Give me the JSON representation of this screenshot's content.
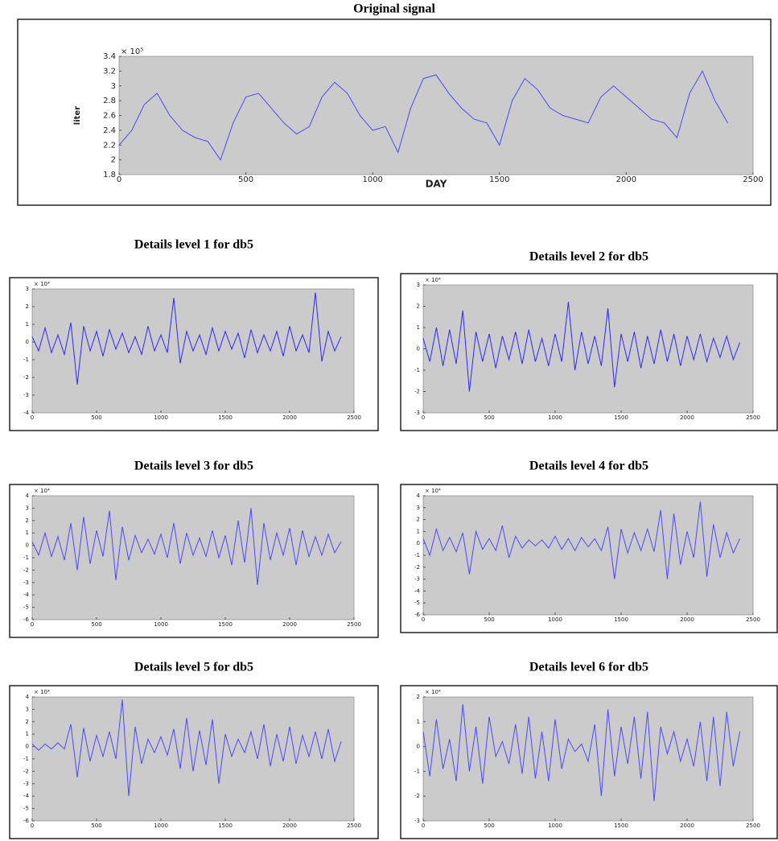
{
  "chart_data": [
    {
      "type": "line",
      "title": "Original signal",
      "xlabel": "DAY",
      "ylabel": "liter",
      "annotation": "× 10⁵",
      "color": "#4a4aff",
      "x": [
        0,
        50,
        100,
        150,
        200,
        250,
        300,
        350,
        400,
        450,
        500,
        550,
        600,
        650,
        700,
        750,
        800,
        850,
        900,
        950,
        1000,
        1050,
        1100,
        1150,
        1200,
        1250,
        1300,
        1350,
        1400,
        1450,
        1500,
        1550,
        1600,
        1650,
        1700,
        1750,
        1800,
        1850,
        1900,
        1950,
        2000,
        2050,
        2100,
        2150,
        2200,
        2250,
        2300,
        2350,
        2400
      ],
      "values": [
        2.2,
        2.4,
        2.75,
        2.9,
        2.6,
        2.4,
        2.3,
        2.25,
        2.0,
        2.5,
        2.85,
        2.9,
        2.7,
        2.5,
        2.35,
        2.45,
        2.85,
        3.05,
        2.9,
        2.6,
        2.4,
        2.45,
        2.1,
        2.7,
        3.1,
        3.15,
        2.9,
        2.7,
        2.55,
        2.5,
        2.2,
        2.8,
        3.1,
        2.95,
        2.7,
        2.6,
        2.55,
        2.5,
        2.85,
        3.0,
        2.85,
        2.7,
        2.55,
        2.5,
        2.3,
        2.9,
        3.2,
        2.8,
        2.5
      ],
      "xlim": [
        0,
        2500
      ],
      "xticks": [
        0,
        500,
        1000,
        1500,
        2000,
        2500
      ],
      "ylim": [
        1.8,
        3.4
      ],
      "yticks": [
        1.8,
        2,
        2.2,
        2.4,
        2.6,
        2.8,
        3,
        3.2,
        3.4
      ]
    },
    {
      "type": "line",
      "title": "Details level 1 for db5",
      "annotation": "× 10⁴",
      "color": "#2a2aff",
      "x": [
        0,
        50,
        100,
        150,
        200,
        250,
        300,
        350,
        400,
        450,
        500,
        550,
        600,
        650,
        700,
        750,
        800,
        850,
        900,
        950,
        1000,
        1050,
        1100,
        1150,
        1200,
        1250,
        1300,
        1350,
        1400,
        1450,
        1500,
        1550,
        1600,
        1650,
        1700,
        1750,
        1800,
        1850,
        1900,
        1950,
        2000,
        2050,
        2100,
        2150,
        2200,
        2250,
        2300,
        2350,
        2400
      ],
      "values": [
        0.3,
        -0.5,
        0.8,
        -0.6,
        0.4,
        -0.7,
        1.1,
        -2.4,
        0.9,
        -0.5,
        0.6,
        -0.8,
        0.7,
        -0.4,
        0.5,
        -0.6,
        0.3,
        -0.7,
        0.9,
        -0.5,
        0.4,
        -0.6,
        2.5,
        -1.2,
        0.6,
        -0.5,
        0.4,
        -0.7,
        0.8,
        -0.5,
        0.6,
        -0.4,
        0.5,
        -0.9,
        0.7,
        -0.6,
        0.4,
        -0.5,
        0.6,
        -0.8,
        0.9,
        -0.5,
        0.4,
        -0.6,
        2.8,
        -1.1,
        0.6,
        -0.5,
        0.3
      ],
      "xlim": [
        0,
        2500
      ],
      "xticks": [
        0,
        500,
        1000,
        1500,
        2000,
        2500
      ],
      "ylim": [
        -4,
        3
      ],
      "yticks": [
        -4,
        -3,
        -2,
        -1,
        0,
        1,
        2,
        3
      ]
    },
    {
      "type": "line",
      "title": "Details level 2 for db5",
      "annotation": "× 10⁴",
      "color": "#2a2aff",
      "x": [
        0,
        50,
        100,
        150,
        200,
        250,
        300,
        350,
        400,
        450,
        500,
        550,
        600,
        650,
        700,
        750,
        800,
        850,
        900,
        950,
        1000,
        1050,
        1100,
        1150,
        1200,
        1250,
        1300,
        1350,
        1400,
        1450,
        1500,
        1550,
        1600,
        1650,
        1700,
        1750,
        1800,
        1850,
        1900,
        1950,
        2000,
        2050,
        2100,
        2150,
        2200,
        2250,
        2300,
        2350,
        2400
      ],
      "values": [
        0.5,
        -0.6,
        1.0,
        -0.8,
        0.9,
        -0.7,
        1.8,
        -2.0,
        0.8,
        -0.6,
        0.7,
        -0.9,
        0.6,
        -0.5,
        0.8,
        -0.7,
        0.9,
        -0.6,
        0.5,
        -0.8,
        0.7,
        -0.6,
        2.2,
        -1.0,
        0.8,
        -0.7,
        0.6,
        -0.8,
        1.9,
        -1.8,
        0.7,
        -0.6,
        0.8,
        -0.9,
        0.6,
        -0.7,
        0.9,
        -0.6,
        0.7,
        -0.8,
        0.6,
        -0.5,
        0.7,
        -0.6,
        0.5,
        -0.4,
        0.6,
        -0.5,
        0.3
      ],
      "xlim": [
        0,
        2500
      ],
      "xticks": [
        0,
        500,
        1000,
        1500,
        2000,
        2500
      ],
      "ylim": [
        -3,
        3
      ],
      "yticks": [
        -3,
        -2,
        -1,
        0,
        1,
        2,
        3
      ]
    },
    {
      "type": "line",
      "title": "Details level 3 for db5",
      "annotation": "× 10⁴",
      "color": "#4a4aff",
      "x": [
        0,
        50,
        100,
        150,
        200,
        250,
        300,
        350,
        400,
        450,
        500,
        550,
        600,
        650,
        700,
        750,
        800,
        850,
        900,
        950,
        1000,
        1050,
        1100,
        1150,
        1200,
        1250,
        1300,
        1350,
        1400,
        1450,
        1500,
        1550,
        1600,
        1650,
        1700,
        1750,
        1800,
        1850,
        1900,
        1950,
        2000,
        2050,
        2100,
        2150,
        2200,
        2250,
        2300,
        2350,
        2400
      ],
      "values": [
        0.3,
        -0.8,
        1.0,
        -0.9,
        0.7,
        -1.2,
        1.8,
        -2.0,
        2.3,
        -1.5,
        1.2,
        -0.9,
        2.8,
        -2.8,
        1.5,
        -1.2,
        0.8,
        -0.6,
        0.5,
        -0.7,
        0.9,
        -1.0,
        1.8,
        -1.5,
        1.0,
        -0.8,
        0.6,
        -0.9,
        1.2,
        -1.0,
        0.8,
        -1.6,
        2.0,
        -1.4,
        3.0,
        -3.2,
        1.8,
        -1.2,
        1.0,
        -0.8,
        1.4,
        -1.6,
        1.2,
        -0.9,
        0.7,
        -0.8,
        0.9,
        -0.6,
        0.3
      ],
      "xlim": [
        0,
        2500
      ],
      "xticks": [
        0,
        500,
        1000,
        1500,
        2000,
        2500
      ],
      "ylim": [
        -6,
        4
      ],
      "yticks": [
        -6,
        -5,
        -4,
        -3,
        -2,
        -1,
        0,
        1,
        2,
        3,
        4
      ]
    },
    {
      "type": "line",
      "title": "Details level 4 for db5",
      "annotation": "× 10⁴",
      "color": "#4a4aff",
      "x": [
        0,
        50,
        100,
        150,
        200,
        250,
        300,
        350,
        400,
        450,
        500,
        550,
        600,
        650,
        700,
        750,
        800,
        850,
        900,
        950,
        1000,
        1050,
        1100,
        1150,
        1200,
        1250,
        1300,
        1350,
        1400,
        1450,
        1500,
        1550,
        1600,
        1650,
        1700,
        1750,
        1800,
        1850,
        1900,
        1950,
        2000,
        2050,
        2100,
        2150,
        2200,
        2250,
        2300,
        2350,
        2400
      ],
      "values": [
        0.4,
        -1.0,
        1.2,
        -0.6,
        0.5,
        -0.7,
        0.9,
        -2.6,
        1.0,
        -0.5,
        0.4,
        -0.6,
        1.5,
        -1.2,
        0.6,
        -0.4,
        0.3,
        -0.2,
        0.3,
        -0.4,
        0.6,
        -0.5,
        0.4,
        -0.6,
        0.5,
        -0.3,
        0.4,
        -0.6,
        1.4,
        -3.0,
        1.2,
        -0.8,
        0.9,
        -0.6,
        1.2,
        -0.7,
        2.8,
        -3.0,
        2.5,
        -1.8,
        1.0,
        -1.2,
        3.5,
        -2.8,
        1.6,
        -1.2,
        0.9,
        -0.8,
        0.4
      ],
      "xlim": [
        0,
        2500
      ],
      "xticks": [
        0,
        500,
        1000,
        1500,
        2000,
        2500
      ],
      "ylim": [
        -6,
        4
      ],
      "yticks": [
        -6,
        -5,
        -4,
        -3,
        -2,
        -1,
        0,
        1,
        2,
        3,
        4
      ]
    },
    {
      "type": "line",
      "title": "Details level 5 for db5",
      "annotation": "× 10⁴",
      "color": "#4a4aff",
      "x": [
        0,
        50,
        100,
        150,
        200,
        250,
        300,
        350,
        400,
        450,
        500,
        550,
        600,
        650,
        700,
        750,
        800,
        850,
        900,
        950,
        1000,
        1050,
        1100,
        1150,
        1200,
        1250,
        1300,
        1350,
        1400,
        1450,
        1500,
        1550,
        1600,
        1650,
        1700,
        1750,
        1800,
        1850,
        1900,
        1950,
        2000,
        2050,
        2100,
        2150,
        2200,
        2250,
        2300,
        2350,
        2400
      ],
      "values": [
        0.2,
        -0.3,
        0.2,
        -0.2,
        0.3,
        -0.2,
        1.8,
        -2.5,
        1.5,
        -1.2,
        0.9,
        -0.8,
        1.2,
        -1.0,
        3.8,
        -4.0,
        1.6,
        -1.4,
        0.6,
        -0.5,
        0.8,
        -0.7,
        1.4,
        -1.8,
        2.3,
        -2.0,
        1.3,
        -1.5,
        2.2,
        -3.0,
        1.0,
        -0.8,
        0.6,
        -0.5,
        1.2,
        -1.0,
        1.8,
        -1.6,
        1.0,
        -1.2,
        1.6,
        -1.4,
        0.9,
        -0.8,
        1.2,
        -1.0,
        1.4,
        -1.2,
        0.4
      ],
      "xlim": [
        0,
        2500
      ],
      "xticks": [
        0,
        500,
        1000,
        1500,
        2000,
        2500
      ],
      "ylim": [
        -6,
        4
      ],
      "yticks": [
        -6,
        -5,
        -4,
        -3,
        -2,
        -1,
        0,
        1,
        2,
        3,
        4
      ]
    },
    {
      "type": "line",
      "title": "Details level 6 for db5",
      "annotation": "× 10⁴",
      "color": "#4a4aff",
      "x": [
        0,
        50,
        100,
        150,
        200,
        250,
        300,
        350,
        400,
        450,
        500,
        550,
        600,
        650,
        700,
        750,
        800,
        850,
        900,
        950,
        1000,
        1050,
        1100,
        1150,
        1200,
        1250,
        1300,
        1350,
        1400,
        1450,
        1500,
        1550,
        1600,
        1650,
        1700,
        1750,
        1800,
        1850,
        1900,
        1950,
        2000,
        2050,
        2100,
        2150,
        2200,
        2250,
        2300,
        2350,
        2400
      ],
      "values": [
        0.6,
        -1.2,
        1.1,
        -0.9,
        0.3,
        -1.4,
        1.7,
        -1.0,
        0.8,
        -1.5,
        1.2,
        -0.4,
        0.2,
        -0.7,
        0.9,
        -1.1,
        1.2,
        -1.3,
        0.6,
        -1.4,
        1.1,
        -0.9,
        0.3,
        -0.2,
        0.1,
        -0.6,
        0.9,
        -2.0,
        1.5,
        -1.2,
        0.8,
        -0.7,
        1.2,
        -1.3,
        1.4,
        -2.2,
        0.8,
        -0.3,
        0.6,
        -0.6,
        0.3,
        -0.8,
        1.0,
        -1.4,
        1.2,
        -1.6,
        1.4,
        -0.8,
        0.6
      ],
      "xlim": [
        0,
        2500
      ],
      "xticks": [
        0,
        500,
        1000,
        1500,
        2000,
        2500
      ],
      "ylim": [
        -3,
        2
      ],
      "yticks": [
        -3,
        -2,
        -1,
        0,
        1,
        2
      ]
    }
  ]
}
